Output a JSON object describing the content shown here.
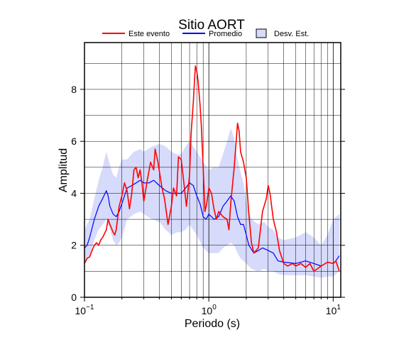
{
  "chart_data": {
    "type": "line",
    "title": "Sitio AORT",
    "xlabel": "Periodo (s)",
    "ylabel": "Amplitud",
    "x_scale": "log",
    "xlim": [
      0.1,
      11.5
    ],
    "ylim": [
      0,
      9.8
    ],
    "x_ticks": [
      {
        "value": 0.1,
        "base": "10",
        "exp": "−1"
      },
      {
        "value": 1,
        "base": "10",
        "exp": "0"
      },
      {
        "value": 10,
        "base": "10",
        "exp": "1"
      }
    ],
    "y_ticks": [
      0,
      2,
      4,
      6,
      8
    ],
    "grid": true,
    "legend_position": "top",
    "legend": [
      {
        "label": "Este evento",
        "kind": "line",
        "color": "#ff0000"
      },
      {
        "label": "Promedio",
        "kind": "line",
        "color": "#0000ff"
      },
      {
        "label": "Desv. Est.",
        "kind": "band",
        "color": "#d6dafb"
      }
    ],
    "series": [
      {
        "name": "Este evento",
        "color": "#ff0000",
        "points": [
          [
            0.1,
            1.3
          ],
          [
            0.105,
            1.5
          ],
          [
            0.11,
            1.55
          ],
          [
            0.115,
            1.8
          ],
          [
            0.12,
            2.0
          ],
          [
            0.125,
            2.1
          ],
          [
            0.13,
            2.0
          ],
          [
            0.135,
            2.2
          ],
          [
            0.14,
            2.3
          ],
          [
            0.15,
            2.6
          ],
          [
            0.155,
            3.0
          ],
          [
            0.16,
            2.8
          ],
          [
            0.17,
            2.5
          ],
          [
            0.175,
            2.4
          ],
          [
            0.18,
            2.6
          ],
          [
            0.19,
            3.5
          ],
          [
            0.2,
            3.9
          ],
          [
            0.21,
            4.4
          ],
          [
            0.22,
            4.1
          ],
          [
            0.23,
            3.4
          ],
          [
            0.24,
            4.0
          ],
          [
            0.25,
            4.9
          ],
          [
            0.26,
            5.0
          ],
          [
            0.27,
            4.6
          ],
          [
            0.28,
            4.9
          ],
          [
            0.29,
            4.4
          ],
          [
            0.3,
            3.7
          ],
          [
            0.32,
            4.5
          ],
          [
            0.34,
            5.2
          ],
          [
            0.36,
            4.9
          ],
          [
            0.37,
            5.7
          ],
          [
            0.39,
            5.2
          ],
          [
            0.42,
            4.2
          ],
          [
            0.44,
            3.8
          ],
          [
            0.47,
            2.8
          ],
          [
            0.5,
            3.5
          ],
          [
            0.52,
            4.2
          ],
          [
            0.55,
            3.9
          ],
          [
            0.57,
            5.4
          ],
          [
            0.6,
            5.3
          ],
          [
            0.63,
            4.4
          ],
          [
            0.66,
            3.5
          ],
          [
            0.7,
            4.7
          ],
          [
            0.72,
            6.3
          ],
          [
            0.75,
            7.5
          ],
          [
            0.77,
            8.5
          ],
          [
            0.78,
            8.9
          ],
          [
            0.8,
            8.7
          ],
          [
            0.82,
            8.3
          ],
          [
            0.85,
            7.4
          ],
          [
            0.87,
            6.6
          ],
          [
            0.9,
            5.0
          ],
          [
            0.93,
            3.3
          ],
          [
            0.96,
            3.6
          ],
          [
            1.0,
            4.2
          ],
          [
            1.05,
            4.0
          ],
          [
            1.1,
            3.4
          ],
          [
            1.15,
            3.0
          ],
          [
            1.2,
            3.3
          ],
          [
            1.3,
            3.1
          ],
          [
            1.4,
            3.0
          ],
          [
            1.45,
            2.6
          ],
          [
            1.5,
            3.6
          ],
          [
            1.6,
            5.0
          ],
          [
            1.7,
            6.7
          ],
          [
            1.75,
            6.4
          ],
          [
            1.8,
            5.6
          ],
          [
            1.9,
            5.2
          ],
          [
            2.0,
            4.6
          ],
          [
            2.1,
            3.2
          ],
          [
            2.2,
            2.1
          ],
          [
            2.3,
            1.7
          ],
          [
            2.5,
            1.9
          ],
          [
            2.7,
            3.3
          ],
          [
            2.9,
            3.8
          ],
          [
            3.0,
            4.3
          ],
          [
            3.1,
            4.0
          ],
          [
            3.3,
            3.0
          ],
          [
            3.5,
            2.5
          ],
          [
            3.7,
            1.8
          ],
          [
            4.0,
            1.3
          ],
          [
            4.3,
            1.2
          ],
          [
            4.7,
            1.3
          ],
          [
            5.0,
            1.2
          ],
          [
            5.5,
            1.3
          ],
          [
            6.0,
            1.15
          ],
          [
            6.5,
            1.3
          ],
          [
            7.0,
            1.0
          ],
          [
            8.0,
            1.2
          ],
          [
            9.0,
            1.35
          ],
          [
            10.0,
            1.3
          ],
          [
            10.5,
            1.4
          ],
          [
            11.2,
            1.0
          ]
        ]
      },
      {
        "name": "Promedio",
        "color": "#0000ff",
        "points": [
          [
            0.1,
            1.9
          ],
          [
            0.105,
            2.0
          ],
          [
            0.11,
            2.3
          ],
          [
            0.12,
            3.0
          ],
          [
            0.13,
            3.5
          ],
          [
            0.14,
            3.8
          ],
          [
            0.15,
            4.1
          ],
          [
            0.155,
            3.9
          ],
          [
            0.16,
            3.5
          ],
          [
            0.17,
            3.2
          ],
          [
            0.18,
            3.1
          ],
          [
            0.19,
            3.3
          ],
          [
            0.2,
            3.6
          ],
          [
            0.22,
            4.2
          ],
          [
            0.24,
            4.3
          ],
          [
            0.26,
            4.4
          ],
          [
            0.28,
            4.5
          ],
          [
            0.3,
            4.4
          ],
          [
            0.33,
            4.4
          ],
          [
            0.36,
            4.5
          ],
          [
            0.4,
            4.3
          ],
          [
            0.45,
            4.1
          ],
          [
            0.5,
            4.0
          ],
          [
            0.55,
            4.0
          ],
          [
            0.6,
            4.0
          ],
          [
            0.65,
            4.2
          ],
          [
            0.7,
            4.4
          ],
          [
            0.75,
            4.3
          ],
          [
            0.8,
            3.9
          ],
          [
            0.85,
            3.6
          ],
          [
            0.9,
            3.1
          ],
          [
            0.95,
            3.0
          ],
          [
            1.0,
            3.2
          ],
          [
            1.05,
            3.1
          ],
          [
            1.1,
            3.0
          ],
          [
            1.2,
            3.1
          ],
          [
            1.3,
            3.5
          ],
          [
            1.4,
            3.7
          ],
          [
            1.5,
            3.9
          ],
          [
            1.6,
            3.7
          ],
          [
            1.7,
            3.1
          ],
          [
            1.8,
            2.8
          ],
          [
            1.9,
            2.8
          ],
          [
            2.0,
            2.4
          ],
          [
            2.1,
            2.0
          ],
          [
            2.3,
            1.7
          ],
          [
            2.5,
            1.8
          ],
          [
            2.7,
            1.9
          ],
          [
            3.0,
            1.8
          ],
          [
            3.3,
            1.7
          ],
          [
            3.6,
            1.4
          ],
          [
            4.0,
            1.35
          ],
          [
            5.0,
            1.3
          ],
          [
            6.0,
            1.4
          ],
          [
            7.0,
            1.3
          ],
          [
            8.0,
            1.2
          ],
          [
            9.0,
            1.35
          ],
          [
            10.0,
            1.3
          ],
          [
            10.5,
            1.4
          ],
          [
            11.2,
            1.6
          ]
        ]
      }
    ],
    "band": {
      "name": "Desv. Est.",
      "upper": [
        [
          0.1,
          2.6
        ],
        [
          0.11,
          3.0
        ],
        [
          0.12,
          3.8
        ],
        [
          0.13,
          4.5
        ],
        [
          0.14,
          5.0
        ],
        [
          0.15,
          5.6
        ],
        [
          0.16,
          5.1
        ],
        [
          0.17,
          4.7
        ],
        [
          0.18,
          4.6
        ],
        [
          0.19,
          5.0
        ],
        [
          0.2,
          5.3
        ],
        [
          0.22,
          5.3
        ],
        [
          0.25,
          5.6
        ],
        [
          0.28,
          5.7
        ],
        [
          0.3,
          5.6
        ],
        [
          0.35,
          5.8
        ],
        [
          0.4,
          5.9
        ],
        [
          0.45,
          5.8
        ],
        [
          0.5,
          5.6
        ],
        [
          0.55,
          5.5
        ],
        [
          0.6,
          5.5
        ],
        [
          0.65,
          5.8
        ],
        [
          0.7,
          6.0
        ],
        [
          0.8,
          5.6
        ],
        [
          0.9,
          5.2
        ],
        [
          1.0,
          4.9
        ],
        [
          1.1,
          5.0
        ],
        [
          1.2,
          5.0
        ],
        [
          1.3,
          5.5
        ],
        [
          1.4,
          6.0
        ],
        [
          1.5,
          6.5
        ],
        [
          1.6,
          6.1
        ],
        [
          1.7,
          5.3
        ],
        [
          1.8,
          4.8
        ],
        [
          1.9,
          4.4
        ],
        [
          2.0,
          3.7
        ],
        [
          2.2,
          3.0
        ],
        [
          2.5,
          2.8
        ],
        [
          2.8,
          2.9
        ],
        [
          3.0,
          2.7
        ],
        [
          3.3,
          2.6
        ],
        [
          3.6,
          2.3
        ],
        [
          4.0,
          2.2
        ],
        [
          5.0,
          2.3
        ],
        [
          6.0,
          2.5
        ],
        [
          7.0,
          2.3
        ],
        [
          8.0,
          2.0
        ],
        [
          9.0,
          2.4
        ],
        [
          10.0,
          3.0
        ],
        [
          11.2,
          3.2
        ]
      ],
      "lower": [
        [
          0.1,
          1.3
        ],
        [
          0.11,
          1.6
        ],
        [
          0.12,
          2.2
        ],
        [
          0.13,
          2.6
        ],
        [
          0.14,
          2.8
        ],
        [
          0.15,
          3.0
        ],
        [
          0.16,
          2.6
        ],
        [
          0.17,
          2.2
        ],
        [
          0.18,
          2.0
        ],
        [
          0.19,
          2.1
        ],
        [
          0.2,
          2.3
        ],
        [
          0.22,
          3.0
        ],
        [
          0.25,
          3.2
        ],
        [
          0.28,
          3.3
        ],
        [
          0.3,
          3.2
        ],
        [
          0.35,
          3.0
        ],
        [
          0.4,
          2.9
        ],
        [
          0.45,
          2.6
        ],
        [
          0.5,
          2.4
        ],
        [
          0.55,
          2.5
        ],
        [
          0.6,
          2.5
        ],
        [
          0.65,
          2.6
        ],
        [
          0.7,
          2.8
        ],
        [
          0.8,
          2.4
        ],
        [
          0.9,
          1.9
        ],
        [
          1.0,
          1.7
        ],
        [
          1.1,
          1.7
        ],
        [
          1.2,
          1.7
        ],
        [
          1.3,
          1.9
        ],
        [
          1.4,
          2.0
        ],
        [
          1.5,
          2.1
        ],
        [
          1.6,
          2.0
        ],
        [
          1.7,
          1.7
        ],
        [
          1.8,
          1.5
        ],
        [
          1.9,
          1.4
        ],
        [
          2.0,
          1.3
        ],
        [
          2.2,
          1.1
        ],
        [
          2.5,
          1.0
        ],
        [
          2.8,
          1.1
        ],
        [
          3.0,
          1.0
        ],
        [
          3.3,
          1.0
        ],
        [
          3.6,
          0.9
        ],
        [
          4.0,
          0.85
        ],
        [
          5.0,
          0.85
        ],
        [
          6.0,
          0.85
        ],
        [
          7.0,
          0.8
        ],
        [
          8.0,
          0.75
        ],
        [
          9.0,
          0.8
        ],
        [
          10.0,
          0.8
        ],
        [
          11.2,
          1.0
        ]
      ]
    }
  }
}
